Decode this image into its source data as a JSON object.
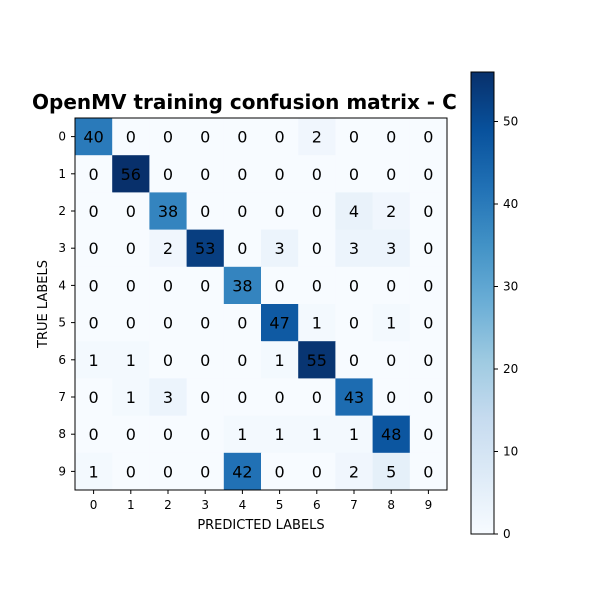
{
  "chart_data": {
    "type": "heatmap",
    "title": "OpenMV training confusion matrix - C",
    "xlabel": "PREDICTED LABELS",
    "ylabel": "TRUE LABELS",
    "x_tick_labels": [
      "0",
      "1",
      "2",
      "3",
      "4",
      "5",
      "6",
      "7",
      "8",
      "9"
    ],
    "y_tick_labels": [
      "0",
      "1",
      "2",
      "3",
      "4",
      "5",
      "6",
      "7",
      "8",
      "9"
    ],
    "matrix": [
      [
        40,
        0,
        0,
        0,
        0,
        0,
        2,
        0,
        0,
        0
      ],
      [
        0,
        56,
        0,
        0,
        0,
        0,
        0,
        0,
        0,
        0
      ],
      [
        0,
        0,
        38,
        0,
        0,
        0,
        0,
        4,
        2,
        0
      ],
      [
        0,
        0,
        2,
        53,
        0,
        3,
        0,
        3,
        3,
        0
      ],
      [
        0,
        0,
        0,
        0,
        38,
        0,
        0,
        0,
        0,
        0
      ],
      [
        0,
        0,
        0,
        0,
        0,
        47,
        1,
        0,
        1,
        0
      ],
      [
        1,
        1,
        0,
        0,
        0,
        1,
        55,
        0,
        0,
        0
      ],
      [
        0,
        1,
        3,
        0,
        0,
        0,
        0,
        43,
        0,
        0
      ],
      [
        0,
        0,
        0,
        0,
        1,
        1,
        1,
        1,
        48,
        0
      ],
      [
        1,
        0,
        0,
        0,
        42,
        0,
        0,
        2,
        5,
        0
      ]
    ],
    "colormap": "Blues",
    "vmin": 0,
    "vmax": 56,
    "colorbar_ticks": [
      "0",
      "10",
      "20",
      "30",
      "40",
      "50"
    ],
    "colors": {
      "low": "#f7fbff",
      "high": "#08306b"
    }
  }
}
